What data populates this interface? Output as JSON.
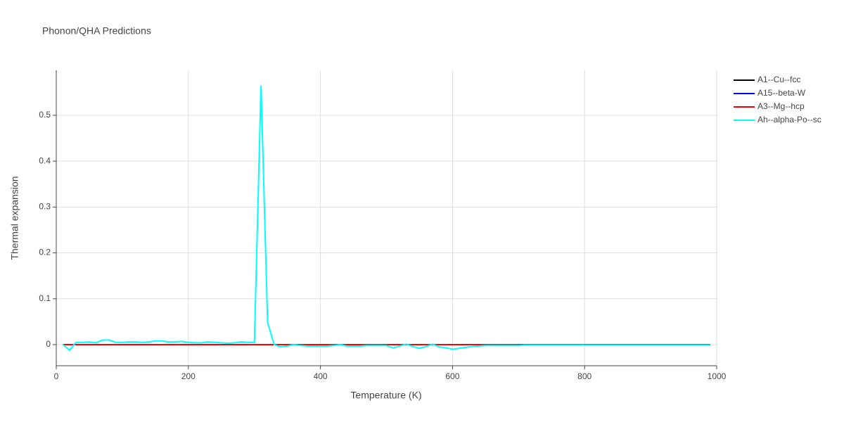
{
  "chart_data": {
    "type": "line",
    "title": "Phonon/QHA Predictions",
    "x_label": "Temperature (K)",
    "y_label": "Thermal expansion",
    "xlim": [
      0,
      1000
    ],
    "xticks": [
      0,
      200,
      400,
      600,
      800,
      1000
    ],
    "ylim": [
      -0.046,
      0.598
    ],
    "yticks": [
      0,
      0.1,
      0.2,
      0.3,
      0.4,
      0.5
    ],
    "grid": true,
    "x": [
      10,
      20,
      30,
      40,
      50,
      60,
      70,
      80,
      90,
      100,
      110,
      120,
      130,
      140,
      150,
      160,
      170,
      180,
      190,
      200,
      210,
      220,
      230,
      240,
      250,
      260,
      270,
      280,
      290,
      300,
      310,
      320,
      330,
      340,
      350,
      360,
      370,
      380,
      390,
      400,
      410,
      420,
      430,
      440,
      450,
      460,
      470,
      480,
      490,
      500,
      510,
      520,
      530,
      540,
      550,
      560,
      570,
      580,
      590,
      600,
      610,
      620,
      630,
      640,
      650,
      660,
      670,
      680,
      690,
      700,
      710,
      720,
      730,
      740,
      750,
      760,
      770,
      780,
      790,
      800,
      810,
      820,
      830,
      840,
      850,
      860,
      870,
      880,
      890,
      900,
      910,
      920,
      930,
      940,
      950,
      960,
      970,
      980,
      990
    ],
    "series": [
      {
        "name": "A1--Cu--fcc",
        "color": "#000000",
        "values": [
          0,
          0,
          0,
          0,
          0,
          0,
          0,
          0,
          0,
          0,
          0,
          0,
          0,
          0,
          0,
          0,
          0,
          0,
          0,
          0,
          0,
          0,
          0,
          0,
          0,
          0,
          0,
          0,
          0,
          0,
          0,
          0,
          0,
          0,
          0,
          0,
          0,
          0,
          0,
          0,
          0,
          0,
          0,
          0,
          0,
          0,
          0,
          0,
          0,
          0,
          0,
          0,
          0,
          0,
          0,
          0,
          0,
          0,
          0,
          0,
          0,
          0,
          0,
          0,
          0,
          0,
          0,
          0,
          0,
          0,
          0,
          0,
          0,
          0,
          0,
          0,
          0,
          0,
          0,
          0,
          0,
          0,
          0,
          0,
          0,
          0,
          0,
          0,
          0,
          0,
          0,
          0,
          0,
          0,
          0,
          0,
          0,
          0,
          0
        ]
      },
      {
        "name": "A15--beta-W",
        "color": "#0000ff",
        "values": [
          0,
          0,
          0,
          0,
          0,
          0,
          0,
          0,
          0,
          0,
          0,
          0,
          0,
          0,
          0,
          0,
          0,
          0,
          0,
          0,
          0,
          0,
          0,
          0,
          0,
          0,
          0,
          0,
          0,
          0,
          0,
          0,
          0,
          0,
          0,
          0,
          0,
          0,
          0,
          0,
          0,
          0,
          0,
          0,
          0,
          0,
          0,
          0,
          0,
          0,
          0,
          0,
          0,
          0,
          0,
          0,
          0,
          0,
          0,
          0,
          0,
          0,
          0,
          0,
          0,
          0,
          0,
          0,
          0,
          0,
          0,
          0,
          0,
          0,
          0,
          0,
          0,
          0,
          0,
          0,
          0,
          0,
          0,
          0,
          0,
          0,
          0,
          0,
          0,
          0,
          0,
          0,
          0,
          0,
          0,
          0,
          0,
          0,
          0
        ]
      },
      {
        "name": "A3--Mg--hcp",
        "color": "#ff0000",
        "values": [
          0,
          0,
          0,
          0,
          0,
          0,
          0,
          0,
          0,
          0,
          0,
          0,
          0,
          0,
          0,
          0,
          0,
          0,
          0,
          0,
          0,
          0,
          0,
          0,
          0,
          0,
          0,
          0,
          0,
          0,
          0,
          0,
          0,
          0,
          0,
          0,
          0,
          0,
          0,
          0,
          0,
          0,
          0,
          0,
          0,
          0,
          0,
          0,
          0,
          0,
          0,
          0,
          0,
          0,
          0,
          0,
          0,
          0,
          0,
          0,
          0,
          0,
          0,
          0,
          0,
          0,
          0,
          0,
          0,
          0,
          0,
          0,
          0,
          0,
          0,
          0,
          0,
          0,
          0,
          0,
          0,
          0,
          0,
          0,
          0,
          0,
          0,
          0,
          0,
          0,
          0,
          0,
          0,
          0,
          0,
          0,
          0,
          0,
          0
        ]
      },
      {
        "name": "Ah--alpha-Po--sc",
        "color": "#00ffff",
        "values": [
          0,
          -0.012,
          0.005,
          0.005,
          0.006,
          0.004,
          0.01,
          0.01,
          0.005,
          0.005,
          0.006,
          0.006,
          0.005,
          0.006,
          0.008,
          0.008,
          0.006,
          0.006,
          0.007,
          0.005,
          0.004,
          0.004,
          0.006,
          0.005,
          0.004,
          0.003,
          0.004,
          0.006,
          0.005,
          0.005,
          0.565,
          0.048,
          0,
          -0.005,
          -0.003,
          0,
          -0.002,
          -0.003,
          -0.003,
          -0.003,
          -0.003,
          -0.002,
          0,
          -0.003,
          -0.003,
          -0.003,
          -0.002,
          -0.002,
          -0.002,
          -0.002,
          -0.007,
          -0.003,
          0.001,
          -0.004,
          -0.008,
          -0.004,
          0.001,
          -0.005,
          -0.007,
          -0.01,
          -0.008,
          -0.006,
          -0.004,
          -0.003,
          -0.002,
          -0.002,
          -0.002,
          -0.002,
          -0.002,
          -0.002,
          -0.001,
          -0.001,
          -0.001,
          -0.001,
          -0.001,
          -0.001,
          -0.001,
          -0.001,
          -0.001,
          -0.001,
          -0.001,
          -0.001,
          -0.001,
          -0.001,
          -0.001,
          -0.001,
          -0.001,
          -0.001,
          -0.001,
          -0.001,
          -0.001,
          -0.001,
          -0.001,
          -0.001,
          -0.001,
          -0.001,
          -0.001,
          -0.001,
          -0.001
        ]
      }
    ]
  }
}
